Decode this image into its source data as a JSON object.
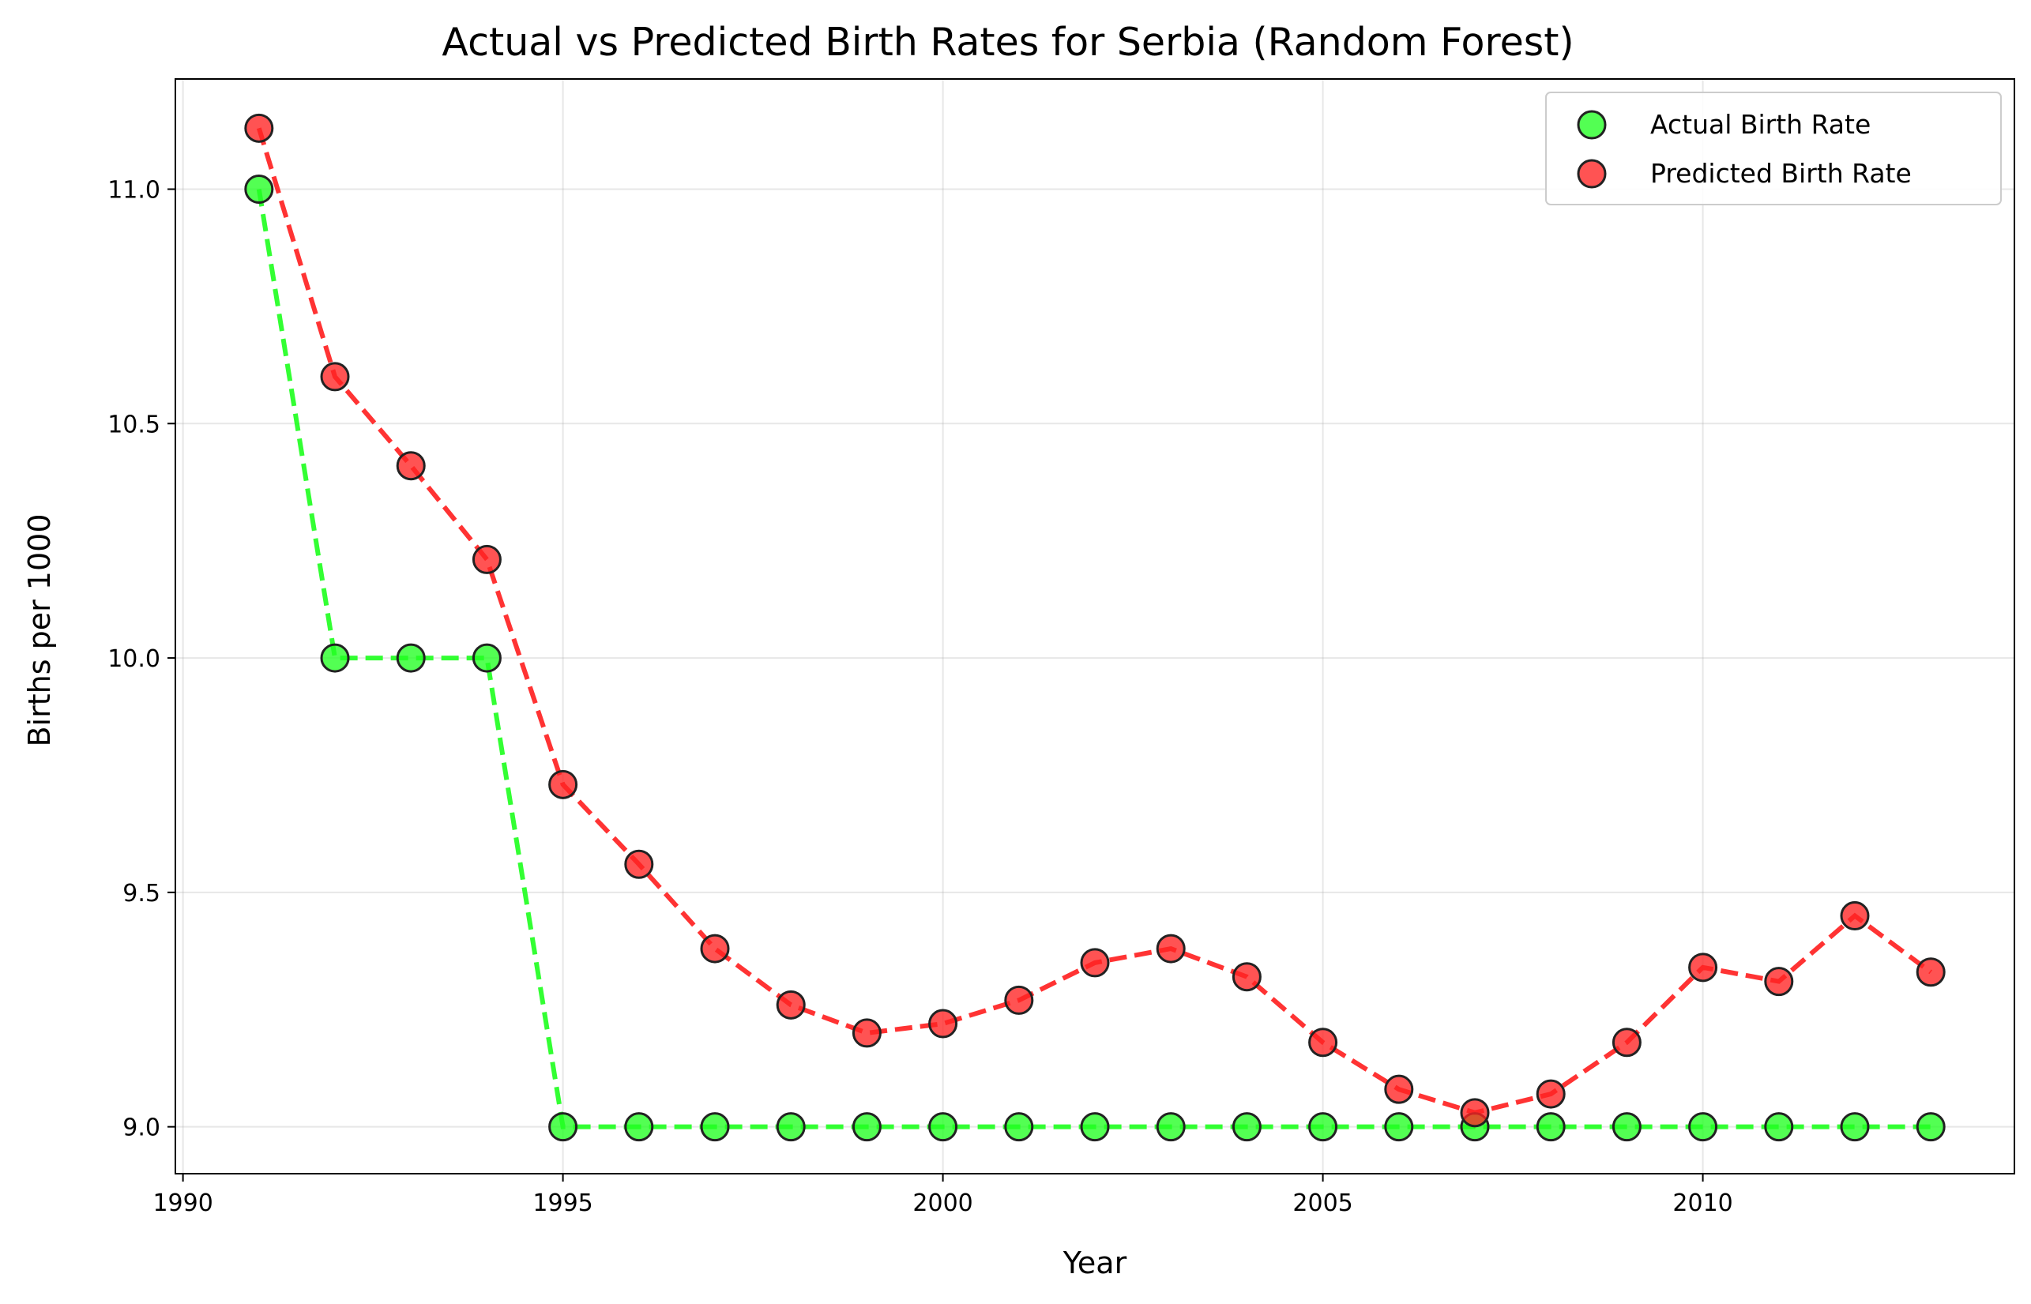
{
  "chart_data": {
    "type": "line",
    "title": "Actual vs Predicted Birth Rates for Serbia (Random Forest)",
    "xlabel": "Year",
    "ylabel": "Births per 1000",
    "xlim": [
      1989.9,
      2014.1
    ],
    "ylim": [
      8.9,
      11.235
    ],
    "xticks": [
      1990,
      1995,
      2000,
      2005,
      2010
    ],
    "yticks": [
      9.0,
      9.5,
      10.0,
      10.5,
      11.0
    ],
    "xtick_labels": [
      "1990",
      "1995",
      "2000",
      "2005",
      "2010"
    ],
    "ytick_labels": [
      "9.0",
      "9.5",
      "10.0",
      "10.5",
      "11.0"
    ],
    "grid": true,
    "legend_position": "top-right",
    "x": [
      1991,
      1992,
      1993,
      1994,
      1995,
      1996,
      1997,
      1998,
      1999,
      2000,
      2001,
      2002,
      2003,
      2004,
      2005,
      2006,
      2007,
      2008,
      2009,
      2010,
      2011,
      2012,
      2013
    ],
    "series": [
      {
        "name": "Actual Birth Rate",
        "color": "#22ff22",
        "values": [
          11.0,
          10.0,
          10.0,
          10.0,
          9.0,
          9.0,
          9.0,
          9.0,
          9.0,
          9.0,
          9.0,
          9.0,
          9.0,
          9.0,
          9.0,
          9.0,
          9.0,
          9.0,
          9.0,
          9.0,
          9.0,
          9.0,
          9.0
        ]
      },
      {
        "name": "Predicted Birth Rate",
        "color": "#ff2222",
        "values": [
          11.13,
          10.6,
          10.41,
          10.21,
          9.73,
          9.56,
          9.38,
          9.26,
          9.2,
          9.22,
          9.27,
          9.35,
          9.38,
          9.32,
          9.18,
          9.08,
          9.03,
          9.07,
          9.18,
          9.34,
          9.31,
          9.45,
          9.33
        ]
      }
    ]
  }
}
